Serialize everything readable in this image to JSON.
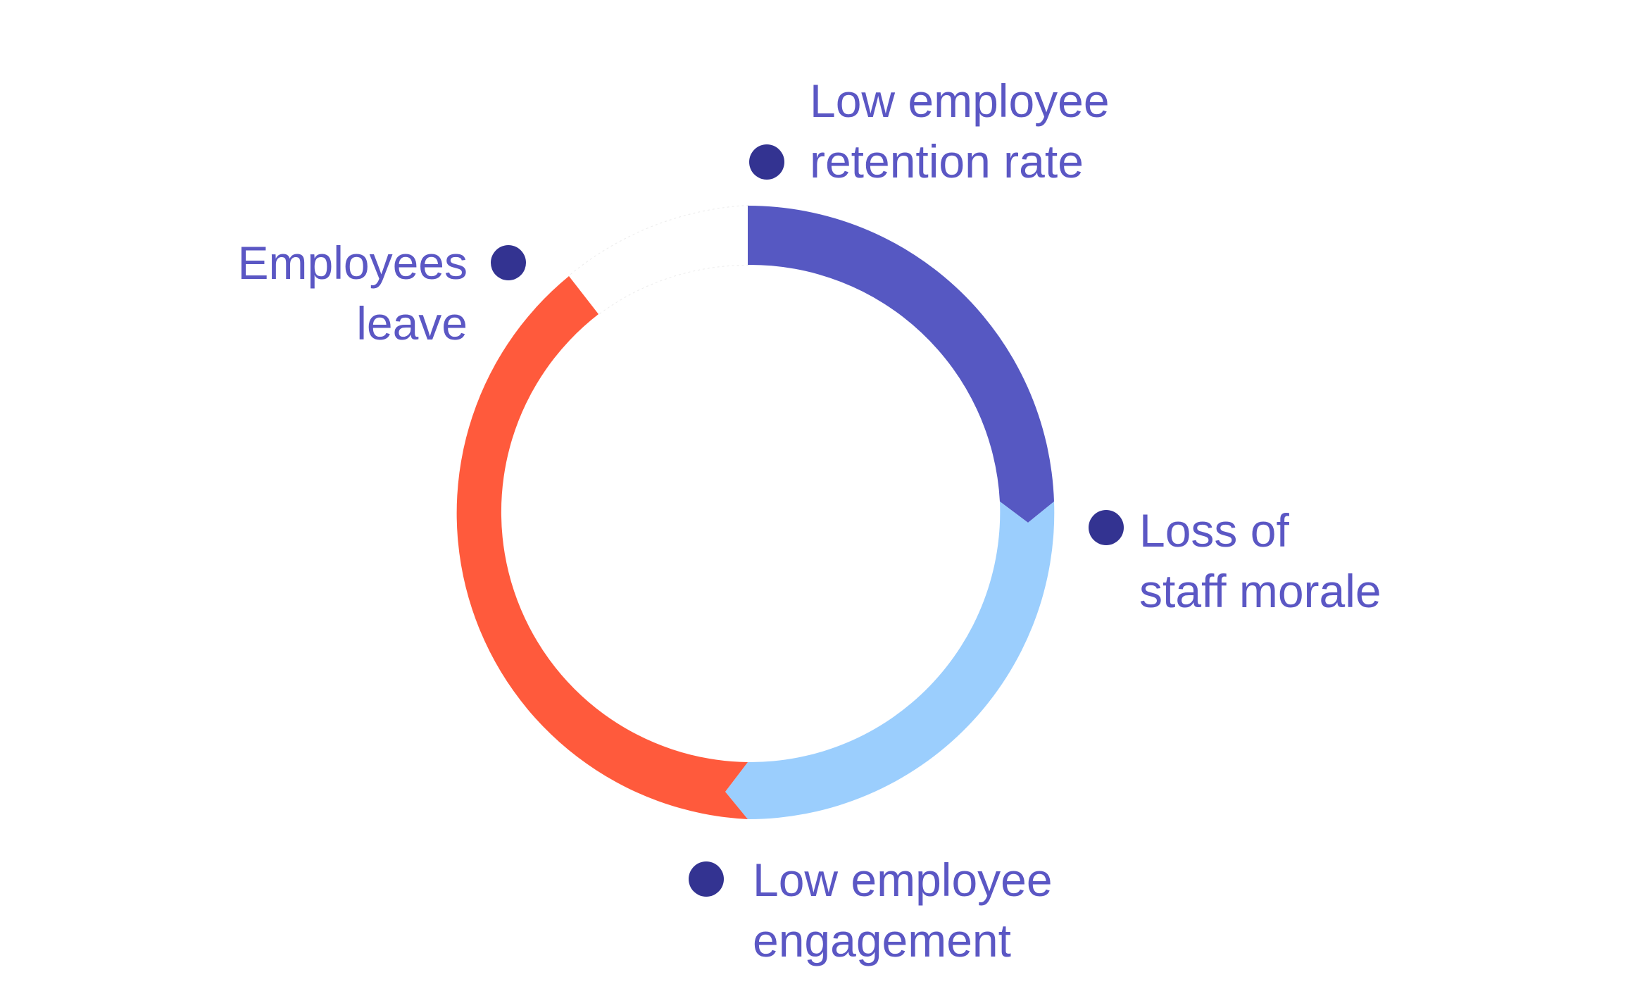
{
  "colors": {
    "label_text": "#5b57c4",
    "bullet": "#333391"
  },
  "cycle": [
    {
      "id": "retention",
      "lines": [
        "Low employee",
        "retention rate"
      ],
      "color": "#5658c2"
    },
    {
      "id": "morale",
      "lines": [
        "Loss of",
        "staff morale"
      ],
      "color": "#9bcefd"
    },
    {
      "id": "engagement",
      "lines": [
        "Low employee",
        "engagement"
      ],
      "color": "#ff5a3c"
    },
    {
      "id": "leave",
      "lines": [
        "Employees",
        "leave"
      ],
      "color": "#ffffff"
    }
  ]
}
